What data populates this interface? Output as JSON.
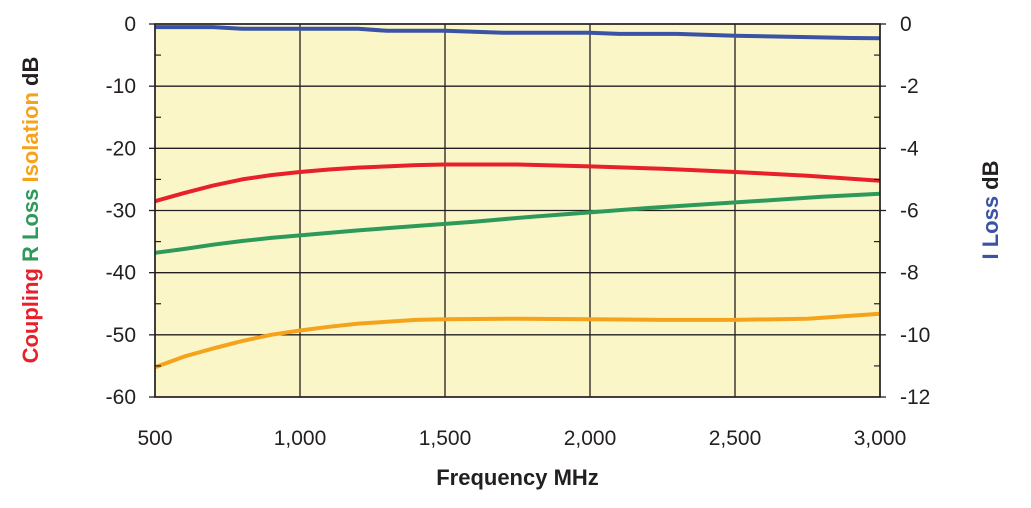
{
  "chart_data": {
    "type": "line",
    "xlabel": "Frequency MHz",
    "x_ticks": [
      500,
      1000,
      1500,
      2000,
      2500,
      3000
    ],
    "x_tick_labels": [
      "500",
      "1,000",
      "1,500",
      "2,000",
      "2,500",
      "3,000"
    ],
    "xlim": [
      500,
      3000
    ],
    "ylim_left": [
      -60,
      0
    ],
    "y_ticks_left": [
      0,
      -10,
      -20,
      -30,
      -40,
      -50,
      -60
    ],
    "y_tick_labels_left": [
      "0",
      "-10",
      "-20",
      "-30",
      "-40",
      "-50",
      "-60"
    ],
    "ylim_right": [
      -12,
      0
    ],
    "y_ticks_right": [
      0,
      -2,
      -4,
      -6,
      -8,
      -10,
      -12
    ],
    "y_tick_labels_right": [
      "0",
      "-2",
      "-4",
      "-6",
      "-8",
      "-10",
      "-12"
    ],
    "ylabel_left": {
      "parts": [
        {
          "text": "Coupling",
          "color": "#e8202a"
        },
        {
          "text": "R Loss",
          "color": "#2e9a5a"
        },
        {
          "text": "Isolation",
          "color": "#f5a31b"
        },
        {
          "text": "dB",
          "color": "#231f20"
        }
      ]
    },
    "ylabel_right": {
      "parts": [
        {
          "text": "I Loss",
          "color": "#3a53a4"
        },
        {
          "text": "dB",
          "color": "#231f20"
        }
      ]
    },
    "grid": true,
    "plot_background": "#fbf6c8",
    "series": [
      {
        "name": "Coupling",
        "axis": "left",
        "color": "#e8202a",
        "x": [
          500,
          600,
          700,
          800,
          900,
          1000,
          1100,
          1200,
          1300,
          1400,
          1500,
          1750,
          2000,
          2250,
          2500,
          2750,
          3000
        ],
        "y": [
          -28.5,
          -27.2,
          -26.0,
          -25.0,
          -24.3,
          -23.8,
          -23.4,
          -23.1,
          -22.9,
          -22.7,
          -22.6,
          -22.6,
          -22.9,
          -23.3,
          -23.8,
          -24.4,
          -25.2
        ]
      },
      {
        "name": "R Loss",
        "axis": "left",
        "color": "#2e9a5a",
        "x": [
          500,
          600,
          700,
          800,
          900,
          1000,
          1200,
          1400,
          1600,
          1800,
          2000,
          2200,
          2400,
          2600,
          2800,
          3000
        ],
        "y": [
          -36.8,
          -36.2,
          -35.5,
          -34.9,
          -34.4,
          -34.0,
          -33.2,
          -32.5,
          -31.8,
          -31.0,
          -30.3,
          -29.6,
          -29.0,
          -28.4,
          -27.8,
          -27.3
        ]
      },
      {
        "name": "Isolation",
        "axis": "left",
        "color": "#f5a31b",
        "x": [
          500,
          600,
          700,
          800,
          900,
          1000,
          1100,
          1200,
          1300,
          1400,
          1500,
          1750,
          2000,
          2250,
          2500,
          2750,
          3000
        ],
        "y": [
          -55.2,
          -53.5,
          -52.2,
          -51.0,
          -50.0,
          -49.3,
          -48.7,
          -48.2,
          -47.9,
          -47.6,
          -47.5,
          -47.4,
          -47.5,
          -47.6,
          -47.6,
          -47.4,
          -46.6
        ]
      },
      {
        "name": "I Loss",
        "axis": "right",
        "color": "#3a53a4",
        "x": [
          500,
          600,
          700,
          800,
          1000,
          1200,
          1300,
          1500,
          1700,
          1800,
          2000,
          2100,
          2300,
          2500,
          2750,
          2900,
          3000
        ],
        "y": [
          -0.1,
          -0.1,
          -0.1,
          -0.15,
          -0.15,
          -0.15,
          -0.22,
          -0.22,
          -0.28,
          -0.28,
          -0.28,
          -0.32,
          -0.32,
          -0.38,
          -0.42,
          -0.45,
          -0.46
        ]
      }
    ]
  }
}
